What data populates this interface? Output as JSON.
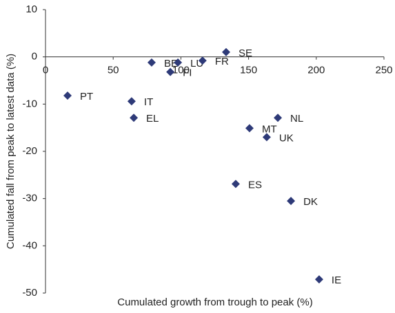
{
  "chart_data": {
    "type": "scatter",
    "x_label": "Cumulated  growth from trough to peak (%)",
    "y_label": "Cumulated  fall from peak to latest data (%)",
    "labels": [
      "PT",
      "IT",
      "EL",
      "BE",
      "FI",
      "LU",
      "FR",
      "SE",
      "MT",
      "UK",
      "NL",
      "ES",
      "DK",
      "IE"
    ],
    "x": [
      16.3,
      63.6,
      65.2,
      78.4,
      92.2,
      97.8,
      116,
      133.4,
      150.7,
      163.4,
      171.6,
      140.5,
      181.3,
      202.1
    ],
    "values": [
      -8.2,
      -9.4,
      -12.9,
      -1.2,
      -3.2,
      -1.2,
      -0.8,
      1.0,
      -15.1,
      -17.0,
      -12.9,
      -26.9,
      -30.5,
      -47.1
    ],
    "color": "#2e3a78",
    "xlim": [
      0,
      250
    ],
    "xticks": [
      0,
      50,
      100,
      150,
      200,
      250
    ],
    "ylim": [
      -50,
      10
    ],
    "yticks": [
      10,
      0,
      -10,
      -20,
      -30,
      -40,
      -50
    ],
    "grid": false
  }
}
